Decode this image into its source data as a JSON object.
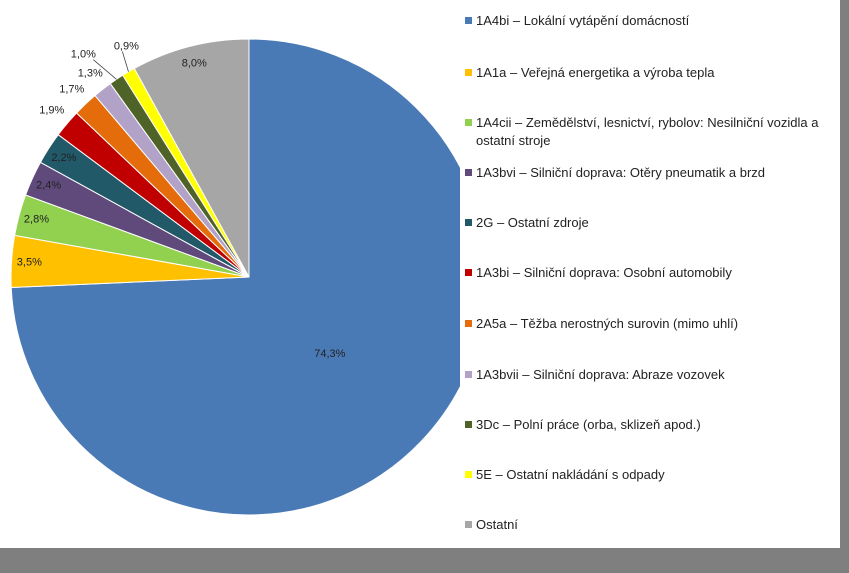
{
  "chart_data": {
    "type": "pie",
    "categories": [
      "1A4bi – Lokální vytápění domácností",
      "1A1a – Veřejná energetika a výroba tepla",
      "1A4cii – Zemědělství, lesnictví, rybolov: Nesilniční vozidla a ostatní stroje",
      "1A3bvi – Silniční doprava: Otěry pneumatik a brzd",
      "2G – Ostatní zdroje",
      "1A3bi – Silniční doprava: Osobní automobily",
      "2A5a – Těžba nerostných surovin (mimo uhlí)",
      "1A3bvii – Silniční doprava: Abraze vozovek",
      "3Dc – Polní práce (orba, sklizeň apod.)",
      "5E – Ostatní nakládání s odpady",
      "Ostatní"
    ],
    "values": [
      74.3,
      3.5,
      2.8,
      2.4,
      2.2,
      1.9,
      1.7,
      1.3,
      1.0,
      0.9,
      8.0
    ],
    "value_labels": [
      "74,3%",
      "3,5%",
      "2,8%",
      "2,4%",
      "2,2%",
      "1,9%",
      "1,7%",
      "1,3%",
      "1,0%",
      "0,9%",
      "8,0%"
    ],
    "colors": [
      "#4a7ab5",
      "#ffc000",
      "#92d050",
      "#604a7b",
      "#215968",
      "#c00000",
      "#e46c0a",
      "#b3a2c7",
      "#4f6228",
      "#ffff00",
      "#a6a6a6"
    ],
    "legend": "right"
  }
}
